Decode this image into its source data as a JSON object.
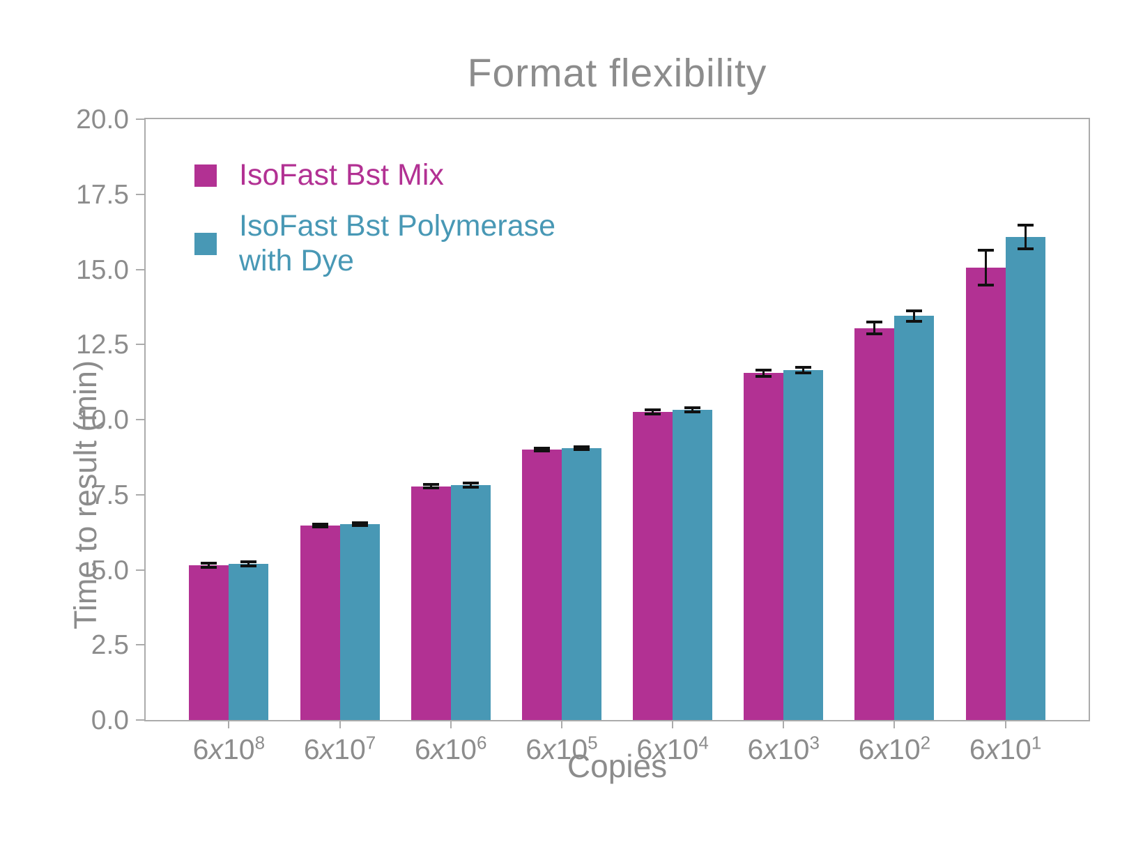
{
  "title": "Format flexibility",
  "xlabel": "Copies",
  "ylabel": "Time to result (min)",
  "colors": {
    "magenta": "#b23193",
    "blue": "#4898b5",
    "axis_gray": "#ababab",
    "text_gray": "#8c8c8c",
    "errorbar_black": "#111111"
  },
  "legend": {
    "position": "upper-left-inside",
    "entries": [
      {
        "label": "IsoFast Bst Mix",
        "color": "#b23193"
      },
      {
        "label": "IsoFast Bst Polymerase with Dye",
        "color": "#4898b5"
      }
    ]
  },
  "chart_data": {
    "type": "bar",
    "title": "Format flexibility",
    "xlabel": "Copies",
    "ylabel": "Time to result (min)",
    "categories": [
      "6x10^8",
      "6x10^7",
      "6x10^6",
      "6x10^5",
      "6x10^4",
      "6x10^3",
      "6x10^2",
      "6x10^1"
    ],
    "series": [
      {
        "name": "IsoFast Bst Mix",
        "color": "#b23193",
        "values": [
          5.15,
          6.48,
          7.78,
          9.0,
          10.25,
          11.55,
          13.05,
          15.05
        ],
        "errors": [
          0.07,
          0.05,
          0.06,
          0.05,
          0.07,
          0.1,
          0.2,
          0.58
        ]
      },
      {
        "name": "IsoFast Bst Polymerase with Dye",
        "color": "#4898b5",
        "values": [
          5.2,
          6.52,
          7.82,
          9.05,
          10.32,
          11.65,
          13.45,
          16.08
        ],
        "errors": [
          0.07,
          0.05,
          0.06,
          0.05,
          0.07,
          0.1,
          0.17,
          0.4
        ]
      }
    ],
    "ylim": [
      0.0,
      20.0
    ],
    "ytick_values": [
      0.0,
      2.5,
      5.0,
      7.5,
      10.0,
      12.5,
      15.0,
      17.5,
      20.0
    ],
    "ytick_labels": [
      "0.0",
      "2.5",
      "5.0",
      "7.5",
      "10.0",
      "12.5",
      "15.0",
      "17.5",
      "20.0"
    ],
    "xlim_units": [
      -0.75,
      7.75
    ],
    "grid": false,
    "legend_position": "upper left"
  }
}
